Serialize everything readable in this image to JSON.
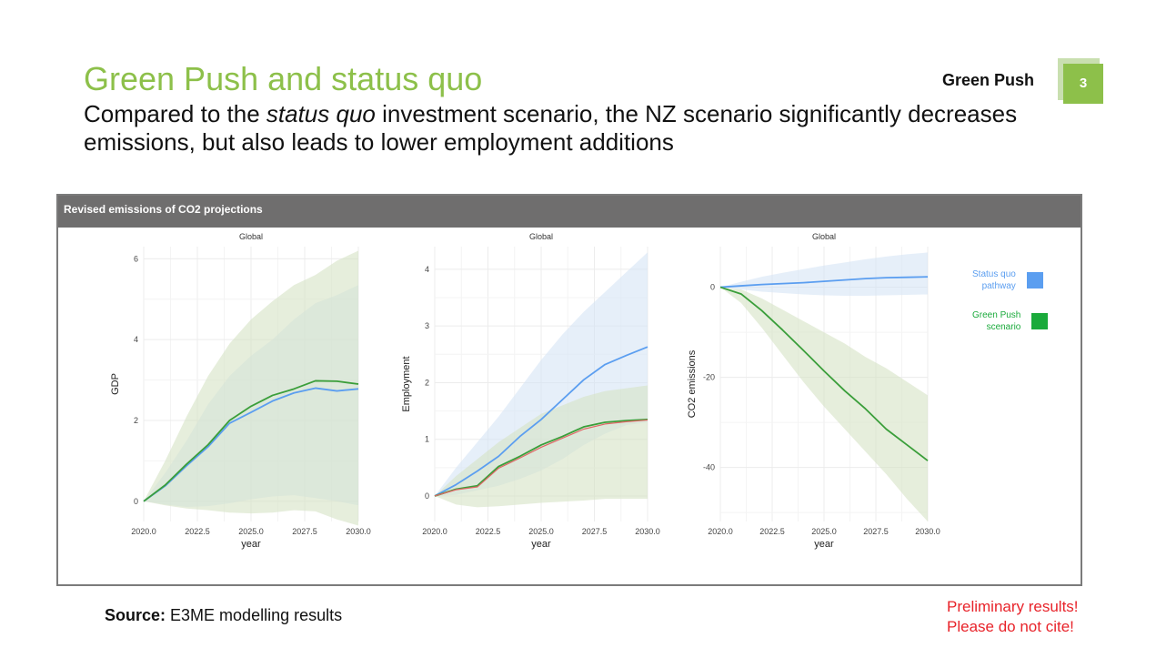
{
  "slide": {
    "title": "Green Push and status quo",
    "subtitle_parts": [
      "Compared to the ",
      "status quo",
      " investment scenario, the NZ scenario significantly decreases emissions, but also leads to lower employment additions"
    ],
    "section_name": "Green Push",
    "page_number": "3"
  },
  "panel": {
    "header": "Revised emissions of CO2 projections"
  },
  "legend": [
    {
      "label_line1": "Status quo",
      "label_line2": "pathway",
      "color": "#5b9ef0"
    },
    {
      "label_line1": "Green Push",
      "label_line2": "scenario",
      "color": "#1aaa3b"
    }
  ],
  "footer": {
    "source_label": "Source:",
    "source_text": " E3ME modelling results",
    "disclaimer_line1": "Preliminary results!",
    "disclaimer_line2": "Please do not cite!"
  },
  "colors": {
    "accent_green": "#8dc04a",
    "status_quo": "#5b9ef0",
    "green_push": "#3a9e3a",
    "green_push_alt": "#e06666",
    "band_green": "#d5e3c5",
    "band_blue": "#d6e4f5"
  },
  "chart_data": [
    {
      "type": "line",
      "title": "Global",
      "xlabel": "year",
      "ylabel": "GDP",
      "x": [
        2020,
        2021,
        2022,
        2023,
        2024,
        2025,
        2026,
        2027,
        2028,
        2029,
        2030
      ],
      "xticks": [
        2020.0,
        2022.5,
        2025.0,
        2027.5,
        2030.0
      ],
      "xtick_labels": [
        "2020.0",
        "2022.5",
        "2025.0",
        "2027.5",
        "2030.0"
      ],
      "yticks": [
        0,
        2,
        4,
        6
      ],
      "xlim": [
        2020,
        2030
      ],
      "ylim": [
        -0.5,
        6.3
      ],
      "series": [
        {
          "key": "status_quo",
          "values": [
            0,
            0.38,
            0.88,
            1.35,
            1.93,
            2.2,
            2.48,
            2.68,
            2.8,
            2.73,
            2.78
          ],
          "band_low": [
            0,
            -0.08,
            -0.14,
            -0.12,
            -0.05,
            0.05,
            0.12,
            0.15,
            0.08,
            0.0,
            -0.1
          ],
          "band_high": [
            0,
            0.7,
            1.5,
            2.4,
            3.1,
            3.6,
            4.0,
            4.5,
            4.9,
            5.1,
            5.35
          ]
        },
        {
          "key": "green_push",
          "values": [
            0,
            0.4,
            0.92,
            1.4,
            2.0,
            2.35,
            2.62,
            2.78,
            2.98,
            2.97,
            2.9
          ],
          "band_low": [
            0,
            -0.1,
            -0.18,
            -0.22,
            -0.28,
            -0.3,
            -0.28,
            -0.22,
            -0.25,
            -0.45,
            -0.6
          ],
          "band_high": [
            0,
            1.0,
            2.1,
            3.1,
            3.9,
            4.5,
            4.95,
            5.35,
            5.6,
            5.95,
            6.2
          ]
        }
      ]
    },
    {
      "type": "line",
      "title": "Global",
      "xlabel": "year",
      "ylabel": "Employment",
      "x": [
        2020,
        2021,
        2022,
        2023,
        2024,
        2025,
        2026,
        2027,
        2028,
        2029,
        2030
      ],
      "xticks": [
        2020.0,
        2022.5,
        2025.0,
        2027.5,
        2030.0
      ],
      "xtick_labels": [
        "2020.0",
        "2022.5",
        "2025.0",
        "2027.5",
        "2030.0"
      ],
      "yticks": [
        0,
        1,
        2,
        3,
        4
      ],
      "xlim": [
        2020,
        2030
      ],
      "ylim": [
        -0.45,
        4.4
      ],
      "series": [
        {
          "key": "status_quo",
          "values": [
            0,
            0.2,
            0.44,
            0.7,
            1.05,
            1.35,
            1.7,
            2.05,
            2.32,
            2.48,
            2.63
          ],
          "band_low": [
            0,
            0.02,
            0.1,
            0.18,
            0.3,
            0.45,
            0.65,
            0.9,
            1.1,
            1.25,
            1.3
          ],
          "band_high": [
            0,
            0.5,
            0.95,
            1.4,
            1.9,
            2.4,
            2.85,
            3.25,
            3.6,
            3.95,
            4.3
          ]
        },
        {
          "key": "green_push",
          "values": [
            0,
            0.12,
            0.18,
            0.52,
            0.7,
            0.9,
            1.05,
            1.22,
            1.3,
            1.33,
            1.35
          ],
          "band_low": [
            0,
            -0.15,
            -0.2,
            -0.18,
            -0.15,
            -0.12,
            -0.1,
            -0.08,
            -0.05,
            -0.05,
            -0.05
          ],
          "band_high": [
            0,
            0.35,
            0.65,
            0.95,
            1.2,
            1.45,
            1.6,
            1.75,
            1.85,
            1.9,
            1.95
          ]
        },
        {
          "key": "green_push_alt",
          "values": [
            0,
            0.11,
            0.16,
            0.49,
            0.67,
            0.86,
            1.02,
            1.18,
            1.27,
            1.31,
            1.34
          ]
        }
      ]
    },
    {
      "type": "line",
      "title": "Global",
      "xlabel": "year",
      "ylabel": "CO2 emissions",
      "x": [
        2020,
        2021,
        2022,
        2023,
        2024,
        2025,
        2026,
        2027,
        2028,
        2029,
        2030
      ],
      "xticks": [
        2020.0,
        2022.5,
        2025.0,
        2027.5,
        2030.0
      ],
      "xtick_labels": [
        "2020.0",
        "2022.5",
        "2025.0",
        "2027.5",
        "2030.0"
      ],
      "yticks": [
        -40,
        -20,
        0
      ],
      "xlim": [
        2020,
        2030
      ],
      "ylim": [
        -52,
        9
      ],
      "series": [
        {
          "key": "status_quo",
          "values": [
            0,
            0.3,
            0.6,
            0.8,
            1.0,
            1.3,
            1.6,
            1.9,
            2.1,
            2.2,
            2.3
          ],
          "band_low": [
            0,
            -0.5,
            -1.0,
            -1.3,
            -1.6,
            -1.8,
            -1.9,
            -1.9,
            -1.8,
            -1.7,
            -1.6
          ],
          "band_high": [
            0,
            1.2,
            2.3,
            3.2,
            4.0,
            4.8,
            5.5,
            6.2,
            6.8,
            7.3,
            7.7
          ]
        },
        {
          "key": "green_push",
          "values": [
            0,
            -1.5,
            -5.2,
            -9.5,
            -14,
            -18.6,
            -23,
            -27,
            -31.5,
            -35,
            -38.5
          ],
          "band_low": [
            0,
            -3.5,
            -9,
            -15,
            -21,
            -26.5,
            -31.5,
            -36.5,
            -41.5,
            -47,
            -52
          ],
          "band_high": [
            0,
            -0.5,
            -2.5,
            -5,
            -7.5,
            -10,
            -12.5,
            -15.5,
            -18,
            -21,
            -24
          ]
        }
      ]
    }
  ]
}
